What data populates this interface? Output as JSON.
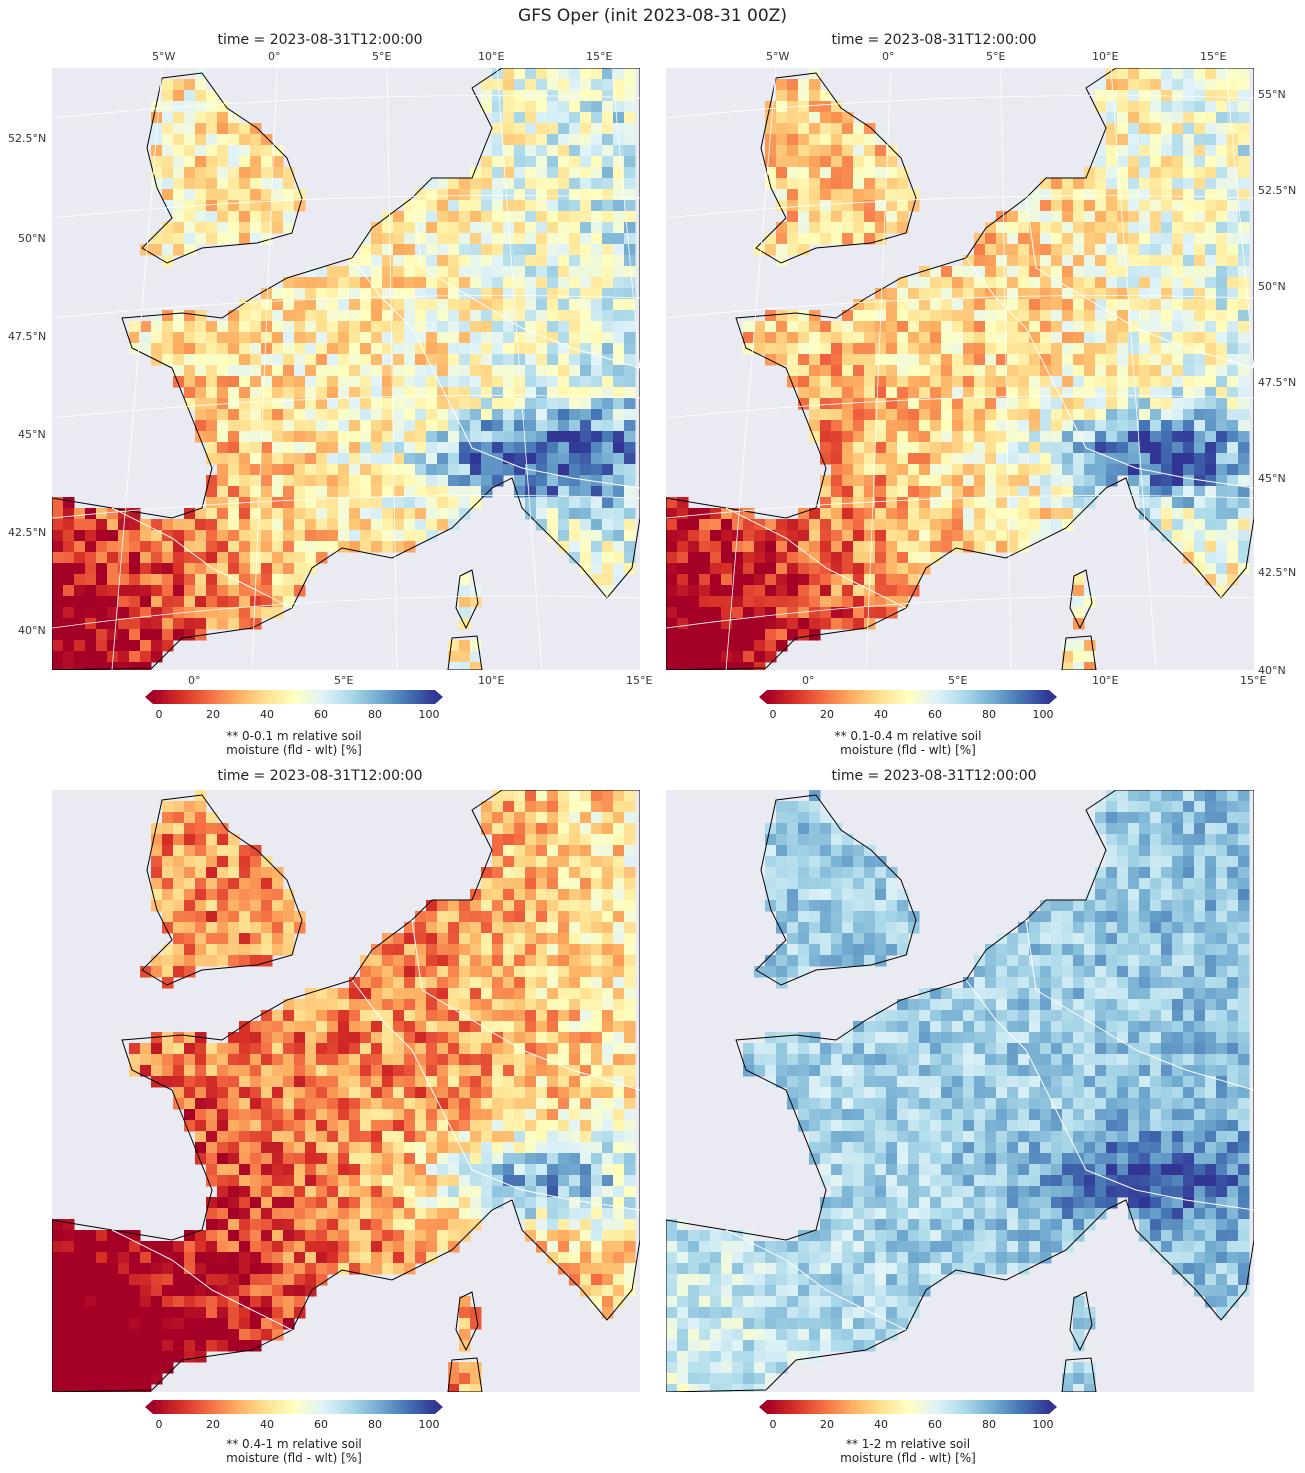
{
  "figure_title": "GFS Oper (init 2023-08-31 00Z)",
  "panels": [
    {
      "title": "time = 2023-08-31T12:00:00",
      "colorbar_label": "** 0-0.1 m relative soil\nmoisture (fld - wlt) [%]",
      "top_lon_labels": [
        "5°W",
        "0°",
        "5°E",
        "10°E",
        "15°E"
      ],
      "bottom_lon_labels": [
        "0°",
        "5°E",
        "10°E",
        "15°E"
      ],
      "lat_labels": [
        "52.5°N",
        "50°N",
        "47.5°N",
        "45°N",
        "42.5°N",
        "40°N"
      ],
      "wet_level": 0.55
    },
    {
      "title": "time = 2023-08-31T12:00:00",
      "colorbar_label": "** 0.1-0.4 m relative soil\nmoisture (fld - wlt) [%]",
      "top_lon_labels": [
        "5°W",
        "0°",
        "5°E",
        "10°E",
        "15°E"
      ],
      "bottom_lon_labels": [
        "0°",
        "5°E",
        "10°E",
        "15°E"
      ],
      "lat_labels": [
        "55°N",
        "52.5°N",
        "50°N",
        "47.5°N",
        "45°N",
        "42.5°N",
        "40°N"
      ],
      "wet_level": 0.5
    },
    {
      "title": "time = 2023-08-31T12:00:00",
      "colorbar_label": "** 0.4-1 m relative soil\nmoisture (fld - wlt) [%]",
      "top_lon_labels": [],
      "bottom_lon_labels": [],
      "lat_labels": [],
      "wet_level": 0.35
    },
    {
      "title": "time = 2023-08-31T12:00:00",
      "colorbar_label": "** 1-2 m relative soil\nmoisture (fld - wlt) [%]",
      "top_lon_labels": [],
      "bottom_lon_labels": [],
      "lat_labels": [],
      "wet_level": 0.75
    }
  ],
  "colorbar": {
    "ticks": [
      "0",
      "20",
      "40",
      "60",
      "80",
      "100"
    ],
    "colormap": [
      "#a50026",
      "#d73027",
      "#f46d43",
      "#fdae61",
      "#fee090",
      "#ffffbf",
      "#e0f3f8",
      "#abd9e9",
      "#74add1",
      "#4575b4",
      "#313695"
    ],
    "extend": "both",
    "range": [
      0,
      100
    ]
  },
  "map_style": {
    "background": "#eaeaf2",
    "coastline_color": "#000000",
    "border_color": "#ffffff",
    "gridline_color": "#ffffff"
  }
}
